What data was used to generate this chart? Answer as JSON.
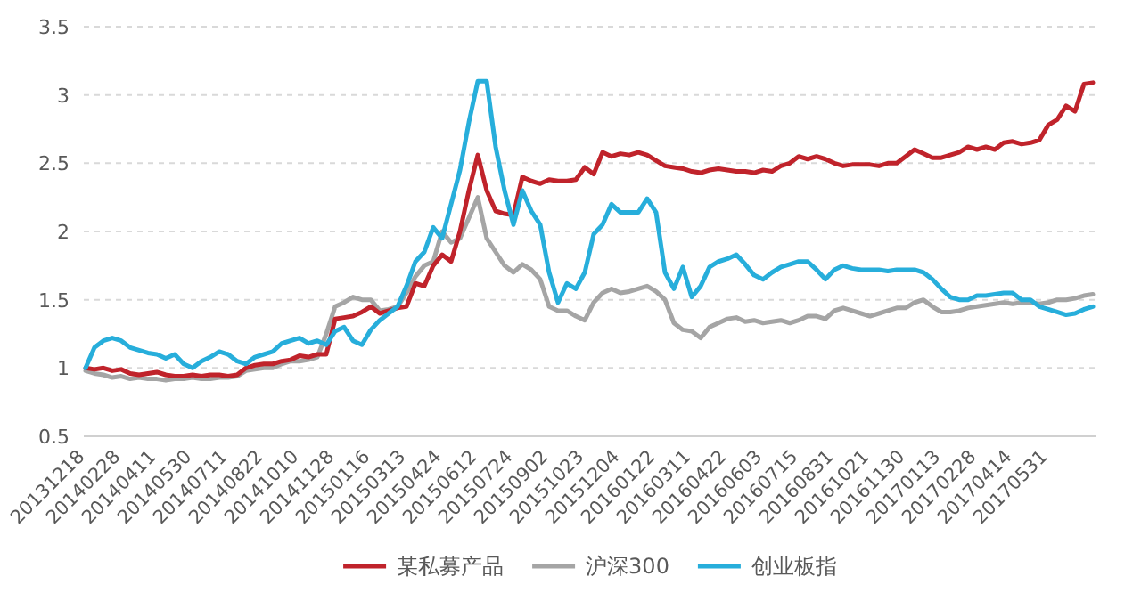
{
  "chart_data": {
    "type": "line",
    "categories": [
      "20131218",
      null,
      null,
      null,
      "20140228",
      null,
      null,
      null,
      "20140411",
      null,
      null,
      null,
      "20140530",
      null,
      null,
      null,
      "20140711",
      null,
      null,
      null,
      "20140822",
      null,
      null,
      null,
      "20141010",
      null,
      null,
      null,
      "20141128",
      null,
      null,
      null,
      "20150116",
      null,
      null,
      null,
      "20150313",
      null,
      null,
      null,
      "20150424",
      null,
      null,
      null,
      "20150612",
      null,
      null,
      null,
      "20150724",
      null,
      null,
      null,
      "20150902",
      null,
      null,
      null,
      "20151023",
      null,
      null,
      null,
      "20151204",
      null,
      null,
      null,
      "20160122",
      null,
      null,
      null,
      "20160311",
      null,
      null,
      null,
      "20160422",
      null,
      null,
      null,
      "20160603",
      null,
      null,
      null,
      "20160715",
      null,
      null,
      null,
      "20160831",
      null,
      null,
      null,
      "20161021",
      null,
      null,
      null,
      "20161130",
      null,
      null,
      null,
      "20170113",
      null,
      null,
      null,
      "20170228",
      null,
      null,
      null,
      "20170414",
      null,
      null,
      null,
      "20170531",
      null,
      null,
      null,
      null,
      null
    ],
    "series": [
      {
        "name": "某私募产品",
        "color": "#c0232b",
        "values": [
          1.0,
          0.99,
          1.0,
          0.98,
          0.99,
          0.96,
          0.95,
          0.96,
          0.97,
          0.95,
          0.94,
          0.94,
          0.95,
          0.94,
          0.95,
          0.95,
          0.94,
          0.95,
          1.0,
          1.02,
          1.03,
          1.03,
          1.05,
          1.06,
          1.09,
          1.08,
          1.1,
          1.1,
          1.36,
          1.37,
          1.38,
          1.41,
          1.45,
          1.4,
          1.42,
          1.44,
          1.45,
          1.62,
          1.6,
          1.75,
          1.83,
          1.78,
          2.0,
          2.3,
          2.56,
          2.3,
          2.15,
          2.13,
          2.12,
          2.4,
          2.37,
          2.35,
          2.38,
          2.37,
          2.37,
          2.38,
          2.47,
          2.42,
          2.58,
          2.55,
          2.57,
          2.56,
          2.58,
          2.56,
          2.52,
          2.48,
          2.47,
          2.46,
          2.44,
          2.43,
          2.45,
          2.46,
          2.45,
          2.44,
          2.44,
          2.43,
          2.45,
          2.44,
          2.48,
          2.5,
          2.55,
          2.53,
          2.55,
          2.53,
          2.5,
          2.48,
          2.49,
          2.49,
          2.49,
          2.48,
          2.5,
          2.5,
          2.55,
          2.6,
          2.57,
          2.54,
          2.54,
          2.56,
          2.58,
          2.62,
          2.6,
          2.62,
          2.6,
          2.65,
          2.66,
          2.64,
          2.65,
          2.67,
          2.78,
          2.82,
          2.92,
          2.88,
          3.08,
          3.09
        ]
      },
      {
        "name": "沪深300",
        "color": "#a5a5a5",
        "values": [
          0.98,
          0.96,
          0.95,
          0.93,
          0.94,
          0.92,
          0.93,
          0.92,
          0.92,
          0.91,
          0.92,
          0.92,
          0.93,
          0.92,
          0.92,
          0.93,
          0.93,
          0.94,
          0.98,
          0.99,
          1.0,
          1.0,
          1.03,
          1.05,
          1.05,
          1.06,
          1.08,
          1.25,
          1.45,
          1.48,
          1.52,
          1.5,
          1.5,
          1.42,
          1.43,
          1.45,
          1.55,
          1.67,
          1.75,
          1.78,
          2.0,
          1.92,
          1.95,
          2.1,
          2.25,
          1.95,
          1.85,
          1.75,
          1.7,
          1.76,
          1.72,
          1.65,
          1.45,
          1.42,
          1.42,
          1.38,
          1.35,
          1.48,
          1.55,
          1.58,
          1.55,
          1.56,
          1.58,
          1.6,
          1.56,
          1.5,
          1.33,
          1.28,
          1.27,
          1.22,
          1.3,
          1.33,
          1.36,
          1.37,
          1.34,
          1.35,
          1.33,
          1.34,
          1.35,
          1.33,
          1.35,
          1.38,
          1.38,
          1.36,
          1.42,
          1.44,
          1.42,
          1.4,
          1.38,
          1.4,
          1.42,
          1.44,
          1.44,
          1.48,
          1.5,
          1.45,
          1.41,
          1.41,
          1.42,
          1.44,
          1.45,
          1.46,
          1.47,
          1.48,
          1.47,
          1.48,
          1.48,
          1.47,
          1.48,
          1.5,
          1.5,
          1.51,
          1.53,
          1.54
        ]
      },
      {
        "name": "创业板指",
        "color": "#27aedb",
        "values": [
          1.0,
          1.15,
          1.2,
          1.22,
          1.2,
          1.15,
          1.13,
          1.11,
          1.1,
          1.07,
          1.1,
          1.03,
          1.0,
          1.05,
          1.08,
          1.12,
          1.1,
          1.05,
          1.03,
          1.08,
          1.1,
          1.12,
          1.18,
          1.2,
          1.22,
          1.18,
          1.2,
          1.17,
          1.27,
          1.3,
          1.2,
          1.17,
          1.28,
          1.35,
          1.4,
          1.45,
          1.6,
          1.78,
          1.85,
          2.03,
          1.95,
          2.2,
          2.45,
          2.8,
          3.1,
          3.1,
          2.62,
          2.3,
          2.05,
          2.3,
          2.15,
          2.05,
          1.7,
          1.48,
          1.62,
          1.58,
          1.7,
          1.98,
          2.05,
          2.2,
          2.14,
          2.14,
          2.14,
          2.24,
          2.14,
          1.7,
          1.58,
          1.74,
          1.52,
          1.6,
          1.74,
          1.78,
          1.8,
          1.83,
          1.76,
          1.68,
          1.65,
          1.7,
          1.74,
          1.76,
          1.78,
          1.78,
          1.72,
          1.65,
          1.72,
          1.75,
          1.73,
          1.72,
          1.72,
          1.72,
          1.71,
          1.72,
          1.72,
          1.72,
          1.7,
          1.65,
          1.58,
          1.52,
          1.5,
          1.5,
          1.53,
          1.53,
          1.54,
          1.55,
          1.55,
          1.5,
          1.5,
          1.45,
          1.43,
          1.41,
          1.39,
          1.4,
          1.43,
          1.45
        ]
      }
    ],
    "ylim": [
      0.5,
      3.5
    ],
    "yticks": [
      0.5,
      1,
      1.5,
      2,
      2.5,
      3,
      3.5
    ],
    "grid": "y",
    "legend": "bottom"
  }
}
